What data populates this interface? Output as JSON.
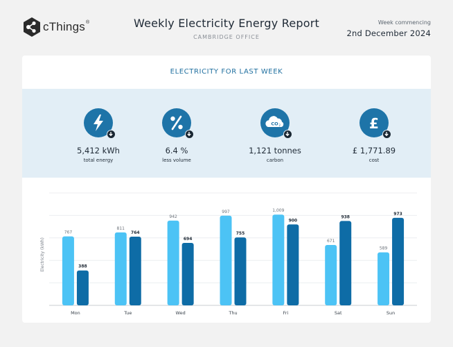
{
  "header": {
    "brand": "cThings",
    "brand_mark": "®",
    "title": "Weekly Electricity Energy Report",
    "subtitle": "CAMBRIDGE OFFICE",
    "week_label": "Week commencing",
    "week_date": "2nd December 2024"
  },
  "section_title": "ELECTRICITY FOR LAST WEEK",
  "kpis": [
    {
      "icon": "lightning-bolt-icon",
      "value": "5,412 kWh",
      "label": "total energy"
    },
    {
      "icon": "percent-icon",
      "value": "6.4 %",
      "label": "less volume"
    },
    {
      "icon": "co2-cloud-icon",
      "value": "1,121 tonnes",
      "label": "carbon"
    },
    {
      "icon": "pound-icon",
      "value": "£ 1,771.89",
      "label": "cost"
    }
  ],
  "colors": {
    "accent": "#1e74a8",
    "kpi_band": "#e2eef6",
    "series_light": "#4cc3f5",
    "series_dark": "#0e6ca6"
  },
  "chart_data": {
    "type": "bar",
    "categories": [
      "Mon",
      "Tue",
      "Wed",
      "Thu",
      "Fri",
      "Sat",
      "Sun"
    ],
    "series": [
      {
        "values": [
          767,
          811,
          942,
          997,
          1009,
          671,
          589
        ],
        "color": "#4cc3f5"
      },
      {
        "values": [
          388,
          764,
          694,
          755,
          900,
          938,
          973
        ],
        "color": "#0e6ca6"
      }
    ],
    "value_labels": [
      [
        "767",
        "811",
        "942",
        "997",
        "1,009",
        "671",
        "589"
      ],
      [
        "388",
        "764",
        "694",
        "755",
        "900",
        "938",
        "973"
      ]
    ],
    "ylabel": "Electricity (kWh)",
    "ylim": [
      0,
      1250
    ],
    "grid": true
  }
}
